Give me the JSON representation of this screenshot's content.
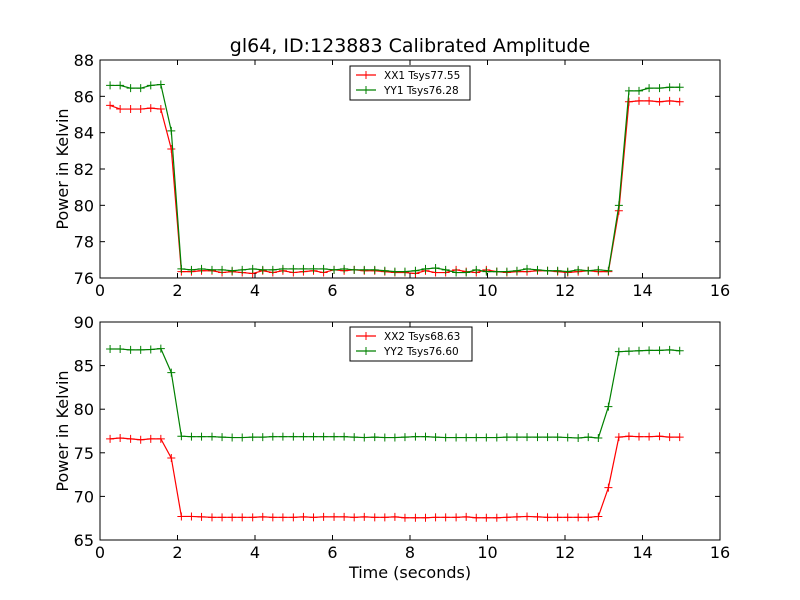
{
  "chart_data": [
    {
      "type": "line",
      "title": "gl64, ID:123883 Calibrated Amplitude",
      "xlabel": "",
      "ylabel": "Power in Kelvin",
      "xlim": [
        0,
        16
      ],
      "ylim": [
        76,
        88
      ],
      "xticks": [
        0,
        2,
        4,
        6,
        8,
        10,
        12,
        14,
        16
      ],
      "yticks": [
        76,
        78,
        80,
        82,
        84,
        86,
        88
      ],
      "grid": false,
      "legend_position": "top-center",
      "x": [
        0.26,
        0.52,
        0.79,
        1.05,
        1.31,
        1.57,
        1.84,
        2.1,
        2.36,
        2.62,
        2.89,
        3.15,
        3.41,
        3.67,
        3.94,
        4.2,
        4.46,
        4.72,
        4.99,
        5.25,
        5.51,
        5.77,
        6.04,
        6.3,
        6.56,
        6.82,
        7.09,
        7.35,
        7.61,
        7.87,
        8.14,
        8.4,
        8.66,
        8.92,
        9.19,
        9.45,
        9.71,
        9.97,
        10.24,
        10.5,
        10.76,
        11.02,
        11.29,
        11.55,
        11.81,
        12.07,
        12.34,
        12.6,
        12.86,
        13.12,
        13.39,
        13.65,
        13.91,
        14.17,
        14.44,
        14.7,
        14.96
      ],
      "series": [
        {
          "name": "XX1 Tsys77.55",
          "color": "#ff0000",
          "values": [
            85.5,
            85.3,
            85.3,
            85.3,
            85.35,
            85.3,
            83.1,
            76.35,
            76.35,
            76.4,
            76.4,
            76.3,
            76.35,
            76.3,
            76.25,
            76.4,
            76.3,
            76.4,
            76.3,
            76.35,
            76.4,
            76.3,
            76.45,
            76.4,
            76.45,
            76.4,
            76.4,
            76.35,
            76.3,
            76.3,
            76.25,
            76.4,
            76.3,
            76.3,
            76.45,
            76.35,
            76.3,
            76.45,
            76.35,
            76.3,
            76.35,
            76.35,
            76.4,
            76.4,
            76.35,
            76.3,
            76.35,
            76.4,
            76.35,
            76.35,
            79.7,
            85.7,
            85.75,
            85.75,
            85.7,
            85.75,
            85.7
          ]
        },
        {
          "name": "YY1 Tsys76.28",
          "color": "#008000",
          "values": [
            86.6,
            86.6,
            86.45,
            86.45,
            86.6,
            86.65,
            84.1,
            76.5,
            76.45,
            76.5,
            76.45,
            76.45,
            76.4,
            76.45,
            76.5,
            76.45,
            76.45,
            76.5,
            76.5,
            76.5,
            76.5,
            76.5,
            76.45,
            76.5,
            76.45,
            76.45,
            76.45,
            76.4,
            76.35,
            76.35,
            76.4,
            76.5,
            76.55,
            76.45,
            76.3,
            76.3,
            76.45,
            76.35,
            76.35,
            76.35,
            76.4,
            76.5,
            76.45,
            76.4,
            76.4,
            76.35,
            76.45,
            76.4,
            76.45,
            76.4,
            80.0,
            86.3,
            86.3,
            86.45,
            86.45,
            86.5,
            86.5
          ]
        }
      ]
    },
    {
      "type": "line",
      "title": "",
      "xlabel": "Time (seconds)",
      "ylabel": "Power in Kelvin",
      "xlim": [
        0,
        16
      ],
      "ylim": [
        65,
        90
      ],
      "xticks": [
        0,
        2,
        4,
        6,
        8,
        10,
        12,
        14,
        16
      ],
      "yticks": [
        65,
        70,
        75,
        80,
        85,
        90
      ],
      "grid": false,
      "legend_position": "top-center",
      "x": [
        0.26,
        0.52,
        0.79,
        1.05,
        1.31,
        1.57,
        1.84,
        2.1,
        2.36,
        2.62,
        2.89,
        3.15,
        3.41,
        3.67,
        3.94,
        4.2,
        4.46,
        4.72,
        4.99,
        5.25,
        5.51,
        5.77,
        6.04,
        6.3,
        6.56,
        6.82,
        7.09,
        7.35,
        7.61,
        7.87,
        8.14,
        8.4,
        8.66,
        8.92,
        9.19,
        9.45,
        9.71,
        9.97,
        10.24,
        10.5,
        10.76,
        11.02,
        11.29,
        11.55,
        11.81,
        12.07,
        12.34,
        12.6,
        12.86,
        13.12,
        13.39,
        13.65,
        13.91,
        14.17,
        14.44,
        14.7,
        14.96
      ],
      "series": [
        {
          "name": "XX2 Tsys68.63",
          "color": "#ff0000",
          "values": [
            76.6,
            76.7,
            76.6,
            76.5,
            76.6,
            76.6,
            74.4,
            67.7,
            67.7,
            67.65,
            67.6,
            67.6,
            67.6,
            67.6,
            67.6,
            67.65,
            67.6,
            67.6,
            67.6,
            67.65,
            67.6,
            67.65,
            67.65,
            67.65,
            67.6,
            67.65,
            67.6,
            67.6,
            67.65,
            67.55,
            67.55,
            67.55,
            67.6,
            67.6,
            67.6,
            67.65,
            67.55,
            67.55,
            67.55,
            67.6,
            67.65,
            67.7,
            67.65,
            67.6,
            67.6,
            67.6,
            67.6,
            67.6,
            67.7,
            71.0,
            76.8,
            76.9,
            76.85,
            76.85,
            76.9,
            76.8,
            76.8
          ]
        },
        {
          "name": "YY2 Tsys76.60",
          "color": "#008000",
          "values": [
            86.9,
            86.9,
            86.8,
            86.8,
            86.85,
            86.95,
            84.2,
            76.9,
            76.85,
            76.85,
            76.85,
            76.8,
            76.75,
            76.75,
            76.8,
            76.8,
            76.85,
            76.85,
            76.85,
            76.85,
            76.85,
            76.85,
            76.85,
            76.85,
            76.8,
            76.75,
            76.8,
            76.75,
            76.75,
            76.8,
            76.85,
            76.85,
            76.8,
            76.75,
            76.75,
            76.75,
            76.75,
            76.75,
            76.75,
            76.8,
            76.8,
            76.8,
            76.8,
            76.8,
            76.8,
            76.75,
            76.7,
            76.8,
            76.7,
            80.3,
            86.6,
            86.65,
            86.7,
            86.75,
            86.75,
            86.8,
            86.7
          ]
        }
      ]
    }
  ]
}
